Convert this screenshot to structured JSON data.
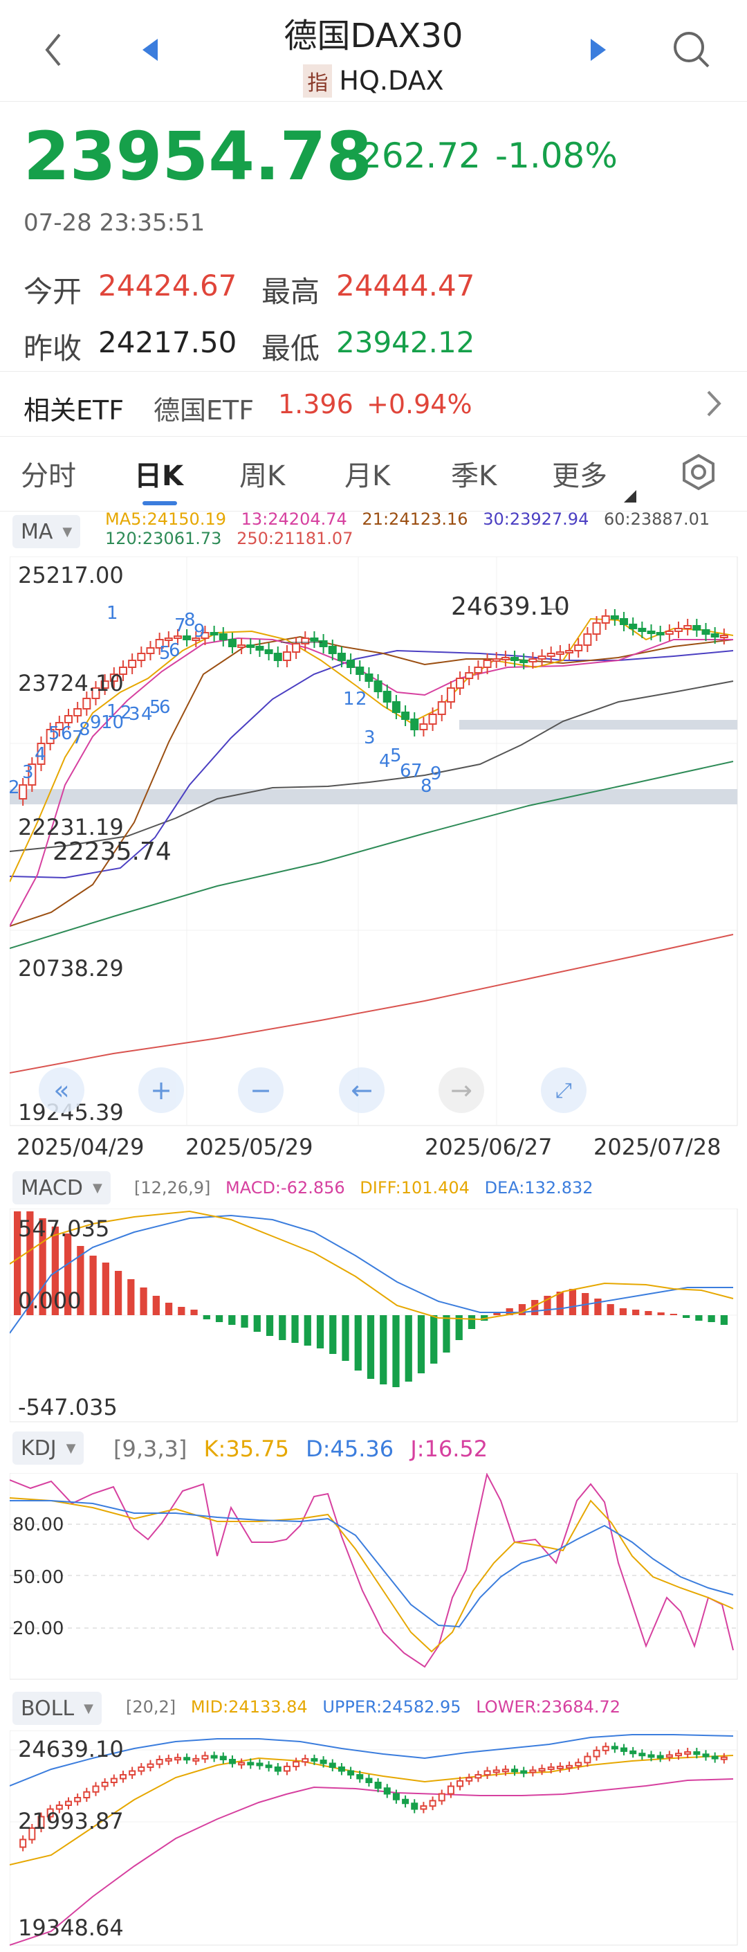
{
  "header": {
    "title": "德国DAX30",
    "badge": "指",
    "code": "HQ.DAX"
  },
  "quote": {
    "price": "23954.78",
    "change": "-262.72",
    "change_pct": "-1.08%",
    "timestamp": "07-28 23:35:51",
    "open_label": "今开",
    "open": "24424.67",
    "high_label": "最高",
    "high": "24444.47",
    "prev_close_label": "昨收",
    "prev_close": "24217.50",
    "low_label": "最低",
    "low": "23942.12"
  },
  "etf": {
    "label": "相关ETF",
    "name": "德国ETF",
    "price": "1.396",
    "change_pct": "+0.94%"
  },
  "tabs": [
    {
      "label": "分时"
    },
    {
      "label": "日K"
    },
    {
      "label": "周K"
    },
    {
      "label": "月K"
    },
    {
      "label": "季K"
    },
    {
      "label": "更多"
    }
  ],
  "ma_panel": {
    "selector": "MA",
    "legend": [
      "MA5:24150.19",
      "13:24204.74",
      "21:24123.16",
      "30:23927.94",
      "60:23887.01",
      "120:23061.73",
      "250:21181.07"
    ],
    "y_labels": [
      "25217.00",
      "23724.10",
      "22231.19",
      "20738.29",
      "19245.39"
    ],
    "high_annotation": "24639.10",
    "low_annotation": "22235.74",
    "dates": [
      "2025/04/29",
      "2025/05/29",
      "2025/06/27",
      "2025/07/28"
    ],
    "controls": [
      "«",
      "+",
      "−",
      "←",
      "→",
      "⤢"
    ]
  },
  "macd_panel": {
    "selector": "MACD",
    "params": "[12,26,9]",
    "legend": [
      "MACD:-62.856",
      "DIFF:101.404",
      "DEA:132.832"
    ],
    "y_labels": [
      "547.035",
      "0.000",
      "-547.035"
    ]
  },
  "kdj_panel": {
    "selector": "KDJ",
    "params": "[9,3,3]",
    "legend": [
      "K:35.75",
      "D:45.36",
      "J:16.52"
    ],
    "y_labels": [
      "80.00",
      "50.00",
      "20.00"
    ]
  },
  "boll_panel": {
    "selector": "BOLL",
    "params": "[20,2]",
    "legend": [
      "MID:24133.84",
      "UPPER:24582.95",
      "LOWER:23684.72"
    ],
    "y_labels": [
      "24639.10",
      "21993.87",
      "19348.64"
    ]
  },
  "colors": {
    "up": "#e0453a",
    "down": "#16a04a",
    "accent": "#3b7ddd",
    "ma5": "#e6a700",
    "ma13": "#d6409f",
    "ma21": "#9b4f12",
    "ma30": "#4b3fc2",
    "ma60": "#555555",
    "ma120": "#2e8b57",
    "ma250": "#d9534f"
  },
  "chart_data": {
    "type": "candlestick",
    "y_range": [
      19245.39,
      25217.0
    ],
    "x_labels": [
      "2025/04/29",
      "2025/05/29",
      "2025/06/27",
      "2025/07/28"
    ],
    "high": 24639.1,
    "low": 22235.74,
    "last_close": 23954.78
  }
}
